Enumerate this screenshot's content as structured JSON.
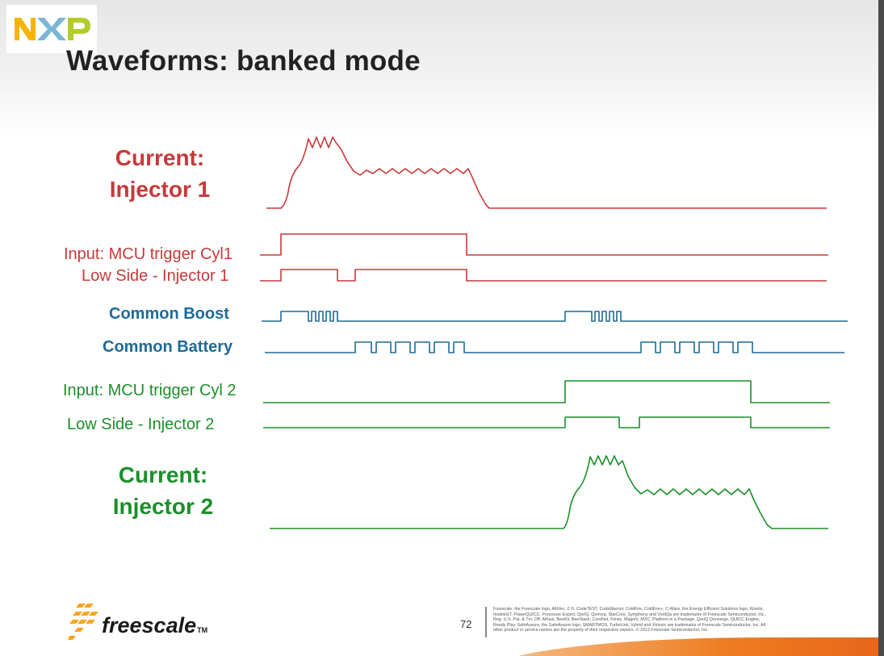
{
  "slide": {
    "title": "Waveforms: banked mode",
    "logo_text": "NXP",
    "page_number": "72"
  },
  "labels": {
    "current_inj1_line1": "Current:",
    "current_inj1_line2": "Injector 1",
    "input_cyl1": "Input: MCU trigger Cyl1",
    "low_side_inj1": "Low Side - Injector 1",
    "common_boost": "Common Boost",
    "common_battery": "Common Battery",
    "input_cyl2": "Input: MCU trigger Cyl 2",
    "low_side_inj2": "Low Side - Injector 2",
    "current_inj2_line1": "Current:",
    "current_inj2_line2": "Injector 2"
  },
  "colors": {
    "injector1": "#c8393a",
    "common": "#1f6a96",
    "injector2": "#1b8f2a",
    "brand_orange": "#ee7d22",
    "nxp_yellow": "#f6b400",
    "nxp_blue": "#7bb6d6",
    "nxp_green": "#b3cc2a"
  },
  "footer": {
    "brand": "freescale",
    "trademark": "TM",
    "legal_lines": [
      "Freescale, the Freescale logo, AltiVec, C-5, CodeTEST, CodeWarrior, ColdFire, ColdFire+, C-Ware, the Energy Efficient Solutions logo, Kinetis,",
      "mobileGT, PowerQUICC, Processor Expert, QorIQ, Qorivva, StarCore, Symphony and VortiQa are trademarks of Freescale Semiconductor, Inc.,",
      "Reg. U.S. Pat. & Tm. Off. Airfast, BeeKit, BeeStack, CoreNet, Flexis, MagniV, MXC, Platform in a Package, QorIQ Qonverge, QUICC Engine,",
      "Ready Play, SafeAssure, the SafeAssure logo, SMARTMOS, TurboLink, Vybrid and Xtrinsic are trademarks of Freescale Semiconductor, Inc. All",
      "other product or service names are the property of their respective owners. © 2012 Freescale Semiconductor, Inc."
    ]
  }
}
